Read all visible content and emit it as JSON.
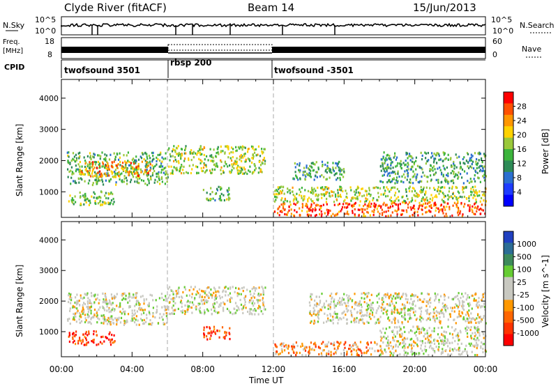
{
  "header": {
    "title": "Clyde River (fitACF)",
    "beam": "Beam 14",
    "date": "15/Jun/2013"
  },
  "top_panels": {
    "nsky_label": "N.Sky",
    "nsky_ticks": [
      "10^5",
      "10^0"
    ],
    "nsearch_label": "N.Search",
    "freq_label_1": "Freq.",
    "freq_label_2": "[MHz]",
    "freq_ticks": [
      "18",
      "8"
    ],
    "nave_label": "Nave",
    "nave_ticks": [
      "60",
      "0"
    ],
    "cpid_label": "CPID",
    "cpid_segments": [
      {
        "name": "twofsound 3501",
        "start_hour": 0,
        "end_hour": 6
      },
      {
        "name": "rbsp 200",
        "start_hour": 6,
        "end_hour": 12
      },
      {
        "name": "twofsound -3501",
        "start_hour": 12,
        "end_hour": 24
      }
    ]
  },
  "chart_data": [
    {
      "type": "heatmap",
      "name": "power",
      "ylabel": "Slant Range [km]",
      "xlim": [
        0,
        24
      ],
      "ylim": [
        180,
        4600
      ],
      "yticks": [
        1000,
        2000,
        3000,
        4000
      ],
      "colorbar_label": "Power [dB]",
      "colorbar_ticks": [
        "28",
        "24",
        "20",
        "16",
        "12",
        "8",
        "4"
      ],
      "colorbar_colors": [
        "#ff0000",
        "#ff5000",
        "#ff9600",
        "#ffd200",
        "#9ac83a",
        "#3cb43c",
        "#2e8b57",
        "#2b6fd0",
        "#1e3cff",
        "#0000ff"
      ],
      "regions": [
        {
          "t0": 0.3,
          "t1": 6.0,
          "r0": 1250,
          "r1": 2300,
          "level": 0.45
        },
        {
          "t0": 1.0,
          "t1": 5.0,
          "r0": 1500,
          "r1": 2000,
          "level": 0.75
        },
        {
          "t0": 6.0,
          "t1": 11.5,
          "r0": 1600,
          "r1": 2500,
          "level": 0.55
        },
        {
          "t0": 0.3,
          "t1": 3.0,
          "r0": 600,
          "r1": 1050,
          "level": 0.5
        },
        {
          "t0": 8.0,
          "t1": 9.5,
          "r0": 750,
          "r1": 1200,
          "level": 0.45
        },
        {
          "t0": 12.0,
          "t1": 24.0,
          "r0": 250,
          "r1": 700,
          "level": 0.85
        },
        {
          "t0": 12.0,
          "t1": 24.0,
          "r0": 700,
          "r1": 1200,
          "level": 0.55
        },
        {
          "t0": 18.0,
          "t1": 24.0,
          "r0": 1300,
          "r1": 2300,
          "level": 0.4
        },
        {
          "t0": 13.0,
          "t1": 16.0,
          "r0": 1400,
          "r1": 2000,
          "level": 0.4
        }
      ]
    },
    {
      "type": "heatmap",
      "name": "velocity",
      "ylabel": "Slant Range [km]",
      "xlabel": "Time UT",
      "xlim": [
        0,
        24
      ],
      "ylim": [
        180,
        4600
      ],
      "xticks": [
        "00:00",
        "04:00",
        "08:00",
        "12:00",
        "16:00",
        "20:00",
        "00:00"
      ],
      "yticks": [
        1000,
        2000,
        3000,
        4000
      ],
      "colorbar_label": "Velocity [m s^-1]",
      "colorbar_ticks": [
        "1000",
        "500",
        "100",
        "25",
        "-25",
        "-100",
        "-500",
        "-1000"
      ],
      "colorbar_colors": [
        "#2040c0",
        "#2c6d94",
        "#3d8a5a",
        "#66cc33",
        "#c8c8c0",
        "#c8c8c0",
        "#ff9800",
        "#ff6600",
        "#ff3300",
        "#ff0000"
      ],
      "regions": [
        {
          "t0": 0.3,
          "t1": 6.0,
          "r0": 1250,
          "r1": 2300,
          "level": 0.5
        },
        {
          "t0": 6.0,
          "t1": 11.5,
          "r0": 1600,
          "r1": 2500,
          "level": 0.5
        },
        {
          "t0": 0.3,
          "t1": 3.0,
          "r0": 600,
          "r1": 1050,
          "level": 0.15
        },
        {
          "t0": 8.0,
          "t1": 9.5,
          "r0": 750,
          "r1": 1200,
          "level": 0.15
        },
        {
          "t0": 12.0,
          "t1": 18.0,
          "r0": 250,
          "r1": 700,
          "level": 0.3
        },
        {
          "t0": 18.0,
          "t1": 24.0,
          "r0": 250,
          "r1": 1200,
          "level": 0.5
        },
        {
          "t0": 14.0,
          "t1": 24.0,
          "r0": 1300,
          "r1": 2300,
          "level": 0.5
        }
      ]
    }
  ]
}
